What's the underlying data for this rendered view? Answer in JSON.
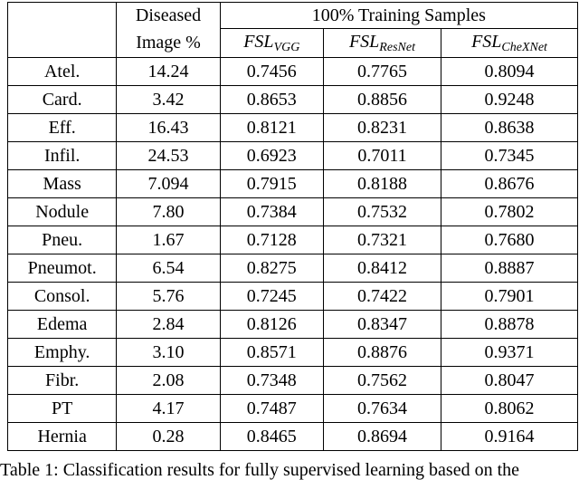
{
  "table": {
    "header": {
      "diseased_line1": "Diseased",
      "diseased_line2": "Image %",
      "group_label": "100% Training Samples",
      "models": [
        {
          "base": "FSL",
          "sub": "VGG"
        },
        {
          "base": "FSL",
          "sub": "ResNet"
        },
        {
          "base": "FSL",
          "sub": "CheXNet"
        }
      ]
    },
    "rows": [
      {
        "label": "Atel.",
        "diseased": "14.24",
        "vgg": "0.7456",
        "resnet": "0.7765",
        "chexnet": "0.8094"
      },
      {
        "label": "Card.",
        "diseased": "3.42",
        "vgg": "0.8653",
        "resnet": "0.8856",
        "chexnet": "0.9248"
      },
      {
        "label": "Eff.",
        "diseased": "16.43",
        "vgg": "0.8121",
        "resnet": "0.8231",
        "chexnet": "0.8638"
      },
      {
        "label": "Infil.",
        "diseased": "24.53",
        "vgg": "0.6923",
        "resnet": "0.7011",
        "chexnet": "0.7345"
      },
      {
        "label": "Mass",
        "diseased": "7.094",
        "vgg": "0.7915",
        "resnet": "0.8188",
        "chexnet": "0.8676"
      },
      {
        "label": "Nodule",
        "diseased": "7.80",
        "vgg": "0.7384",
        "resnet": "0.7532",
        "chexnet": "0.7802"
      },
      {
        "label": "Pneu.",
        "diseased": "1.67",
        "vgg": "0.7128",
        "resnet": "0.7321",
        "chexnet": "0.7680"
      },
      {
        "label": "Pneumot.",
        "diseased": "6.54",
        "vgg": "0.8275",
        "resnet": "0.8412",
        "chexnet": "0.8887"
      },
      {
        "label": "Consol.",
        "diseased": "5.76",
        "vgg": "0.7245",
        "resnet": "0.7422",
        "chexnet": "0.7901"
      },
      {
        "label": "Edema",
        "diseased": "2.84",
        "vgg": "0.8126",
        "resnet": "0.8347",
        "chexnet": "0.8878"
      },
      {
        "label": "Emphy.",
        "diseased": "3.10",
        "vgg": "0.8571",
        "resnet": "0.8876",
        "chexnet": "0.9371"
      },
      {
        "label": "Fibr.",
        "diseased": "2.08",
        "vgg": "0.7348",
        "resnet": "0.7562",
        "chexnet": "0.8047"
      },
      {
        "label": "PT",
        "diseased": "4.17",
        "vgg": "0.7487",
        "resnet": "0.7634",
        "chexnet": "0.8062"
      },
      {
        "label": "Hernia",
        "diseased": "0.28",
        "vgg": "0.8465",
        "resnet": "0.8694",
        "chexnet": "0.9164"
      }
    ]
  },
  "caption": "Table 1: Classification results for fully supervised learning based on the"
}
